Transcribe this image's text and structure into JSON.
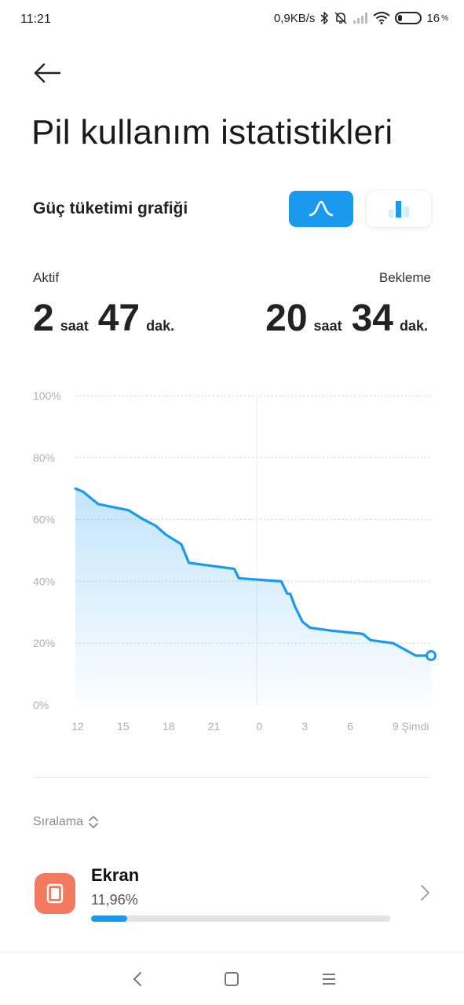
{
  "status_bar": {
    "time": "11:21",
    "net_speed": "0,9KB/s",
    "battery_level": "16",
    "battery_unit": "%"
  },
  "header": {
    "title": "Pil kullanım istatistikleri"
  },
  "graph_section": {
    "title": "Güç tüketimi grafiği",
    "active_toggle": "line",
    "accent_color": "#1a9aee"
  },
  "stats": {
    "active": {
      "label": "Aktif",
      "hours": "2",
      "hours_unit": "saat",
      "minutes": "47",
      "minutes_unit": "dak."
    },
    "standby": {
      "label": "Bekleme",
      "hours": "20",
      "hours_unit": "saat",
      "minutes": "34",
      "minutes_unit": "dak."
    }
  },
  "chart_data": {
    "type": "area",
    "x_tick_labels": [
      "12",
      "15",
      "18",
      "21",
      "0",
      "3",
      "6",
      "9",
      "Şimdi"
    ],
    "y_tick_labels": [
      "100%",
      "80%",
      "60%",
      "40%",
      "20%",
      "0%"
    ],
    "ylim": [
      0,
      100
    ],
    "xlim": [
      0,
      23.5
    ],
    "x_hours_since_12": [
      0,
      0.5,
      1.5,
      3.5,
      4.5,
      5.3,
      6,
      7,
      7.5,
      10.5,
      10.8,
      13.6,
      13.9,
      14,
      14.2,
      14.5,
      15,
      15.5,
      17,
      19,
      19.5,
      21,
      22.5,
      23,
      23.5
    ],
    "values": [
      70,
      69,
      65,
      63,
      60,
      58,
      55,
      52,
      46,
      44,
      41,
      40,
      37,
      36,
      36,
      32,
      27,
      25,
      24,
      23,
      21,
      20,
      16,
      16,
      16
    ],
    "grid": true,
    "line_color": "#1a9aee"
  },
  "sort": {
    "label": "Sıralama"
  },
  "usage_list": [
    {
      "name": "Ekran",
      "percent_text": "11,96%",
      "percent": 11.96,
      "icon": "screen-icon",
      "icon_color": "#f27a5e"
    }
  ],
  "nav": {
    "buttons": [
      "back-nav-icon",
      "home-nav-icon",
      "menu-nav-icon"
    ]
  }
}
